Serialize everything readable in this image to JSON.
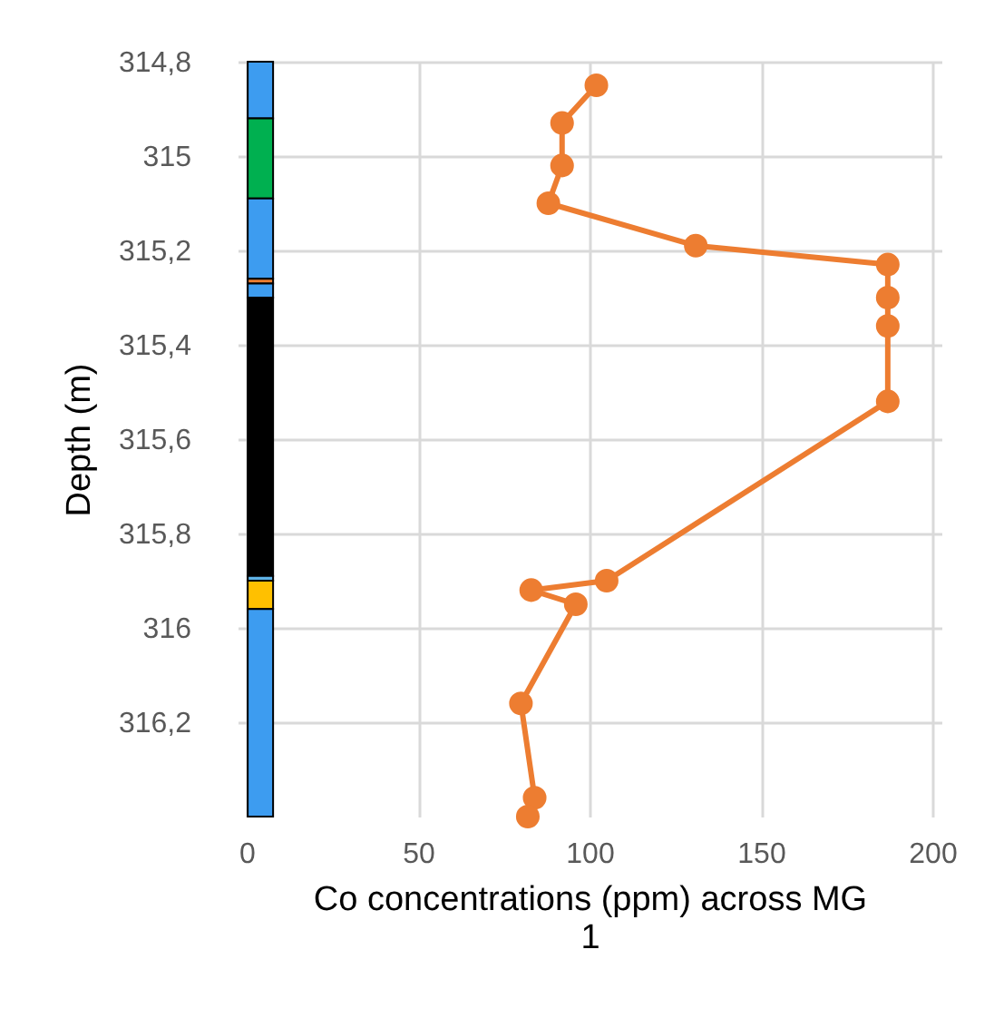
{
  "chart_data": {
    "type": "line",
    "xlabel": "Co concentrations (ppm) across MG 1",
    "ylabel": "Depth (m)",
    "series": [
      {
        "type": "bar",
        "x": [
          4
        ],
        "base": [
          314.8
        ],
        "values": [
          0.12
        ],
        "color": "#3d9cf0"
      },
      {
        "type": "bar",
        "x": [
          4
        ],
        "base": [
          314.92
        ],
        "values": [
          0.17
        ],
        "color": "#00b050"
      },
      {
        "type": "bar",
        "x": [
          4
        ],
        "base": [
          315.09
        ],
        "values": [
          0.17
        ],
        "color": "#3d9cf0"
      },
      {
        "type": "bar",
        "x": [
          4
        ],
        "base": [
          315.26
        ],
        "values": [
          0.01
        ],
        "color": "#ed7d31"
      },
      {
        "type": "bar",
        "x": [
          4
        ],
        "base": [
          315.27
        ],
        "values": [
          0.03
        ],
        "color": "#3d9cf0"
      },
      {
        "type": "bar",
        "x": [
          4
        ],
        "base": [
          315.3
        ],
        "values": [
          0.59
        ],
        "color": "#000000"
      },
      {
        "type": "bar",
        "x": [
          4
        ],
        "base": [
          315.89
        ],
        "values": [
          0.01
        ],
        "color": "#5fb3e8"
      },
      {
        "type": "bar",
        "x": [
          4
        ],
        "base": [
          315.9
        ],
        "values": [
          0.06
        ],
        "color": "#ffc000"
      },
      {
        "type": "bar",
        "x": [
          4
        ],
        "base": [
          315.96
        ],
        "values": [
          0.44
        ],
        "color": "#3d9cf0"
      },
      {
        "color": "#ed7d31",
        "x": [
          102,
          92,
          92,
          88,
          131,
          187,
          187,
          187,
          187,
          105,
          83,
          96,
          80,
          84,
          82
        ],
        "values": [
          314.85,
          314.93,
          315.02,
          315.1,
          315.19,
          315.23,
          315.3,
          315.36,
          315.52,
          315.9,
          315.92,
          315.95,
          316.16,
          316.36,
          316.4
        ]
      }
    ],
    "xlim": [
      0,
      200
    ],
    "xticks": [
      0,
      50,
      100,
      150,
      200
    ],
    "ylim": [
      316.4,
      314.8
    ],
    "yticks": [
      {
        "value": 314.8,
        "label": "314,8"
      },
      315,
      {
        "value": 315.2,
        "label": "315,2"
      },
      {
        "value": 315.4,
        "label": "315,4"
      },
      {
        "value": 315.6,
        "label": "315,6"
      },
      {
        "value": 315.8,
        "label": "315,8"
      },
      316,
      {
        "value": 316.2,
        "label": "316,2"
      }
    ],
    "grid": true,
    "marker": "circle",
    "line_style": "solid"
  }
}
